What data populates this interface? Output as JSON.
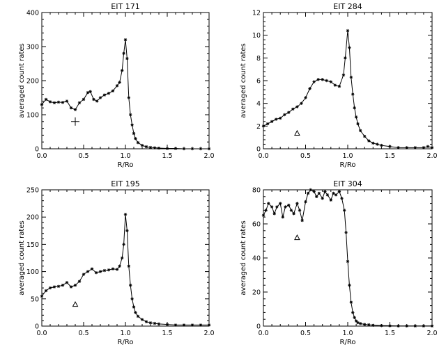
{
  "chart_data": [
    {
      "type": "line",
      "title": "EIT 171",
      "xlabel": "R/Ro",
      "ylabel": "averaged count rates",
      "xlim": [
        0,
        2
      ],
      "ylim": [
        0,
        400
      ],
      "xticks": [
        0,
        0.5,
        1,
        1.5,
        2
      ],
      "xtick_labels": [
        "0.0",
        "0.5",
        "1.0",
        "1.5",
        "2.0"
      ],
      "yticks": [
        0,
        100,
        200,
        300,
        400
      ],
      "ytick_labels": [
        "0",
        "100",
        "200",
        "300",
        "400"
      ],
      "grid": false,
      "marker_symbol": "plus",
      "series": [
        {
          "x": [
            0.0,
            0.05,
            0.1,
            0.15,
            0.2,
            0.25,
            0.3,
            0.35,
            0.4,
            0.45,
            0.5,
            0.55,
            0.58,
            0.62,
            0.66,
            0.7,
            0.75,
            0.8,
            0.85,
            0.9,
            0.93,
            0.96,
            0.98,
            1.0,
            1.02,
            1.04,
            1.06,
            1.08,
            1.1,
            1.12,
            1.15,
            1.2,
            1.25,
            1.3,
            1.35,
            1.4,
            1.5,
            1.6,
            1.7,
            1.8,
            1.9,
            2.0
          ],
          "y": [
            130,
            145,
            138,
            135,
            137,
            136,
            140,
            120,
            115,
            135,
            145,
            165,
            168,
            145,
            140,
            150,
            158,
            163,
            170,
            185,
            195,
            230,
            280,
            320,
            265,
            150,
            100,
            70,
            45,
            30,
            18,
            10,
            6,
            4,
            3,
            2,
            1,
            1,
            0,
            0,
            0,
            0
          ]
        }
      ]
    },
    {
      "type": "line",
      "title": "EIT 284",
      "xlabel": "R/Ro",
      "ylabel": "averaged count rates",
      "xlim": [
        0,
        2
      ],
      "ylim": [
        0,
        12
      ],
      "xticks": [
        0,
        0.5,
        1,
        1.5,
        2
      ],
      "xtick_labels": [
        "0.0",
        "0.5",
        "1.0",
        "1.5",
        "2.0"
      ],
      "yticks": [
        0,
        2,
        4,
        6,
        8,
        10,
        12
      ],
      "ytick_labels": [
        "0",
        "2",
        "4",
        "6",
        "8",
        "10",
        "12"
      ],
      "grid": false,
      "marker_symbol": "triangle",
      "series": [
        {
          "x": [
            0.0,
            0.05,
            0.1,
            0.15,
            0.2,
            0.25,
            0.3,
            0.35,
            0.4,
            0.45,
            0.5,
            0.55,
            0.6,
            0.65,
            0.7,
            0.75,
            0.8,
            0.85,
            0.9,
            0.95,
            0.97,
            1.0,
            1.02,
            1.04,
            1.06,
            1.08,
            1.1,
            1.12,
            1.15,
            1.2,
            1.25,
            1.3,
            1.35,
            1.4,
            1.5,
            1.6,
            1.7,
            1.8,
            1.9,
            1.95,
            2.0
          ],
          "y": [
            2.0,
            2.2,
            2.4,
            2.6,
            2.7,
            3.0,
            3.2,
            3.5,
            3.7,
            4.0,
            4.5,
            5.3,
            5.9,
            6.1,
            6.1,
            6.0,
            5.9,
            5.6,
            5.5,
            6.5,
            8.0,
            10.4,
            8.9,
            6.3,
            4.8,
            3.6,
            2.8,
            2.2,
            1.6,
            1.1,
            0.7,
            0.5,
            0.4,
            0.3,
            0.2,
            0.1,
            0.1,
            0.1,
            0.1,
            0.2,
            0.1
          ]
        }
      ]
    },
    {
      "type": "line",
      "title": "EIT 195",
      "xlabel": "R/Ro",
      "ylabel": "averaged count rates",
      "xlim": [
        0,
        2
      ],
      "ylim": [
        0,
        250
      ],
      "xticks": [
        0,
        0.5,
        1,
        1.5,
        2
      ],
      "xtick_labels": [
        "0.0",
        "0.5",
        "1.0",
        "1.5",
        "2.0"
      ],
      "yticks": [
        0,
        50,
        100,
        150,
        200,
        250
      ],
      "ytick_labels": [
        "0",
        "50",
        "100",
        "150",
        "200",
        "250"
      ],
      "grid": false,
      "marker_symbol": "triangle",
      "series": [
        {
          "x": [
            0.0,
            0.05,
            0.1,
            0.15,
            0.2,
            0.25,
            0.3,
            0.35,
            0.4,
            0.45,
            0.5,
            0.55,
            0.6,
            0.65,
            0.7,
            0.75,
            0.8,
            0.85,
            0.9,
            0.93,
            0.96,
            0.98,
            1.0,
            1.02,
            1.04,
            1.06,
            1.08,
            1.1,
            1.12,
            1.15,
            1.2,
            1.25,
            1.3,
            1.35,
            1.4,
            1.5,
            1.6,
            1.7,
            1.8,
            1.9,
            2.0
          ],
          "y": [
            55,
            65,
            70,
            72,
            73,
            75,
            80,
            72,
            75,
            82,
            95,
            100,
            105,
            98,
            100,
            102,
            103,
            105,
            104,
            110,
            125,
            150,
            205,
            175,
            110,
            75,
            50,
            35,
            25,
            18,
            12,
            8,
            6,
            5,
            4,
            3,
            2,
            2,
            2,
            2,
            2
          ]
        }
      ]
    },
    {
      "type": "line",
      "title": "EIT 304",
      "xlabel": "R/Ro",
      "ylabel": "averaged count rates",
      "xlim": [
        0,
        2
      ],
      "ylim": [
        0,
        80
      ],
      "xticks": [
        0,
        0.5,
        1,
        1.5,
        2
      ],
      "xtick_labels": [
        "0.0",
        "0.5",
        "1.0",
        "1.5",
        "2.0"
      ],
      "yticks": [
        0,
        20,
        40,
        60,
        80
      ],
      "ytick_labels": [
        "0",
        "20",
        "40",
        "60",
        "80"
      ],
      "grid": false,
      "marker_symbol": "triangle",
      "series": [
        {
          "x": [
            0.0,
            0.03,
            0.06,
            0.1,
            0.13,
            0.16,
            0.2,
            0.23,
            0.26,
            0.3,
            0.33,
            0.36,
            0.4,
            0.43,
            0.46,
            0.5,
            0.53,
            0.56,
            0.6,
            0.63,
            0.66,
            0.7,
            0.73,
            0.76,
            0.8,
            0.83,
            0.86,
            0.9,
            0.93,
            0.96,
            0.98,
            1.0,
            1.02,
            1.04,
            1.06,
            1.08,
            1.1,
            1.12,
            1.15,
            1.2,
            1.25,
            1.3,
            1.4,
            1.5,
            1.6,
            1.7,
            1.8,
            1.9,
            2.0
          ],
          "y": [
            65,
            68,
            72,
            70,
            66,
            70,
            72,
            64,
            70,
            71,
            68,
            66,
            72,
            68,
            62,
            73,
            78,
            80,
            79,
            76,
            78,
            75,
            79,
            77,
            74,
            78,
            77,
            79,
            75,
            68,
            55,
            38,
            24,
            14,
            8,
            5,
            3,
            2,
            1.5,
            1,
            0.8,
            0.5,
            0.3,
            0.2,
            0.1,
            0.1,
            0.1,
            0.1,
            0.1
          ]
        }
      ]
    }
  ]
}
